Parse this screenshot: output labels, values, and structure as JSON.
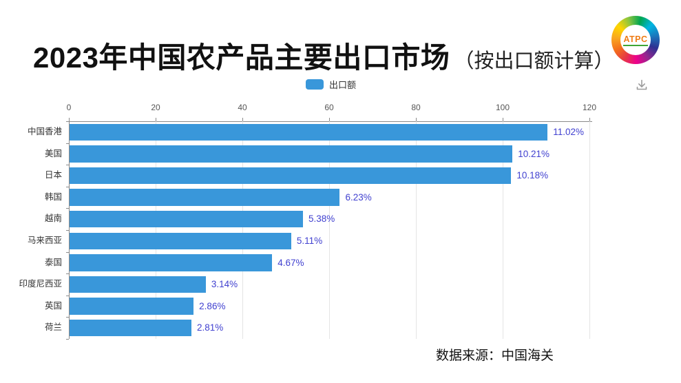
{
  "header": {
    "title": "2023年中国农产品主要出口市场",
    "subtitle": "（按出口额计算）",
    "logo": {
      "text": "ATPC",
      "ring_colors": [
        "#e63946",
        "#f4701b",
        "#f9a620",
        "#ffd500",
        "#8bc53f",
        "#00a651",
        "#00b5e2",
        "#1b75bb",
        "#2e3192",
        "#92278f",
        "#ec008c",
        "#e63946"
      ],
      "text_color": "#ef7d17"
    }
  },
  "legend": {
    "label": "出口额",
    "marker_color": "#3997da"
  },
  "chart_data": {
    "type": "bar",
    "orientation": "horizontal",
    "series_name": "出口额",
    "categories": [
      "中国香港",
      "美国",
      "日本",
      "韩国",
      "越南",
      "马来西亚",
      "泰国",
      "印度尼西亚",
      "英国",
      "荷兰"
    ],
    "values": [
      110.2,
      102.1,
      101.8,
      62.3,
      53.8,
      51.1,
      46.7,
      31.4,
      28.6,
      28.1
    ],
    "labels": [
      "11.02%",
      "10.21%",
      "10.18%",
      "6.23%",
      "5.38%",
      "5.11%",
      "4.67%",
      "3.14%",
      "2.86%",
      "2.81%"
    ],
    "xlim": [
      0,
      120
    ],
    "xticks": [
      0,
      20,
      40,
      60,
      80,
      100,
      120
    ],
    "grid": "vertical",
    "axis_position": "top",
    "bar_color": "#3997da",
    "label_color": "#4141d0",
    "axis_color": "#8a8a8a",
    "grid_color": "#e4e4e4"
  },
  "footer": {
    "source": "数据来源：中国海关"
  }
}
